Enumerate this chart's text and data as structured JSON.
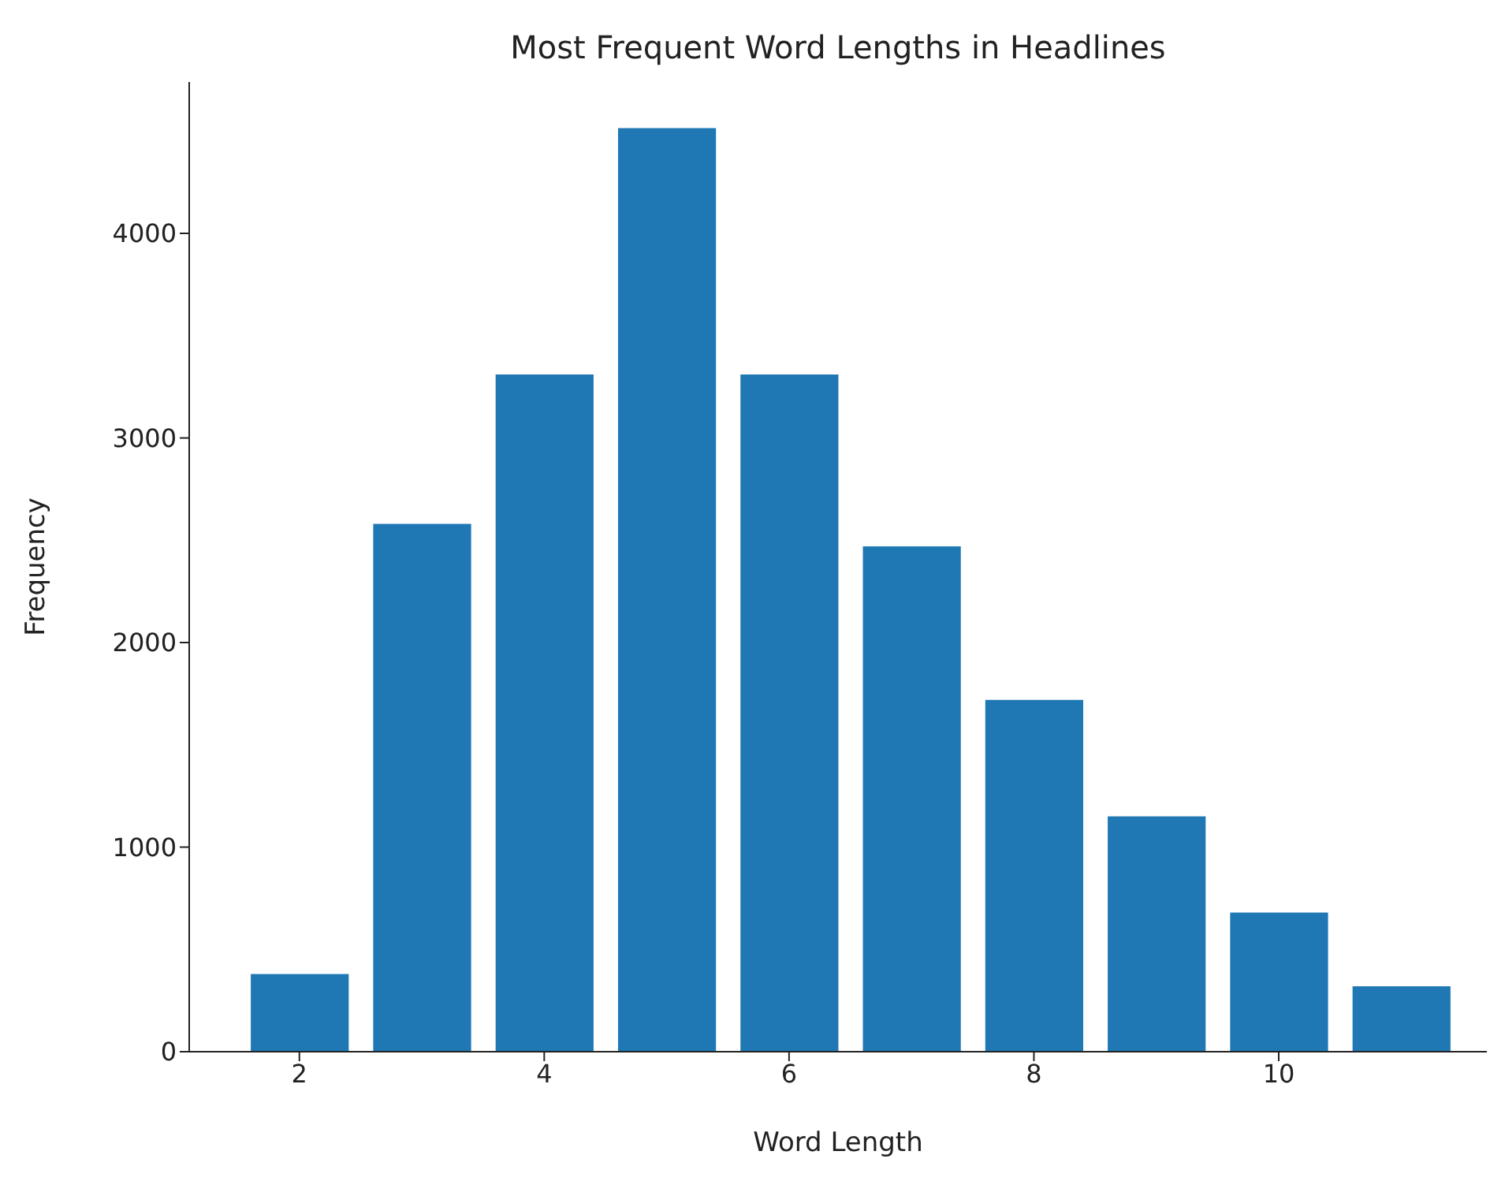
{
  "chart_data": {
    "type": "bar",
    "title": "Most Frequent Word Lengths in Headlines",
    "xlabel": "Word Length",
    "ylabel": "Frequency",
    "x": [
      2,
      3,
      4,
      5,
      6,
      7,
      8,
      9,
      10,
      11
    ],
    "values": [
      380,
      2580,
      3310,
      4515,
      3310,
      2470,
      1720,
      1150,
      680,
      320
    ],
    "color": "#1f77b4",
    "xlim": [
      1.1,
      11.7
    ],
    "xticks": [
      2,
      4,
      6,
      8,
      10
    ],
    "ylim": [
      0,
      4740
    ],
    "yticks": [
      0,
      1000,
      2000,
      3000,
      4000
    ],
    "grid": false
  }
}
